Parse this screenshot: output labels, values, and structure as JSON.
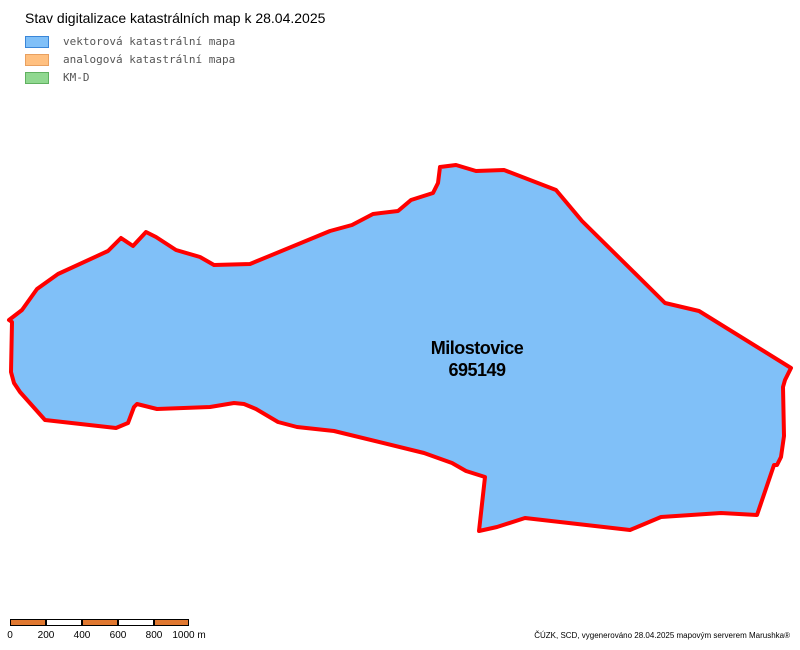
{
  "title": "Stav digitalizace katastrálních map k 28.04.2025",
  "legend": {
    "items": [
      {
        "label": "vektorová katastrální mapa",
        "fill": "#80c0f8",
        "stroke": "#3a86d8"
      },
      {
        "label": "analogová katastrální mapa",
        "fill": "#ffc080",
        "stroke": "#e8a060"
      },
      {
        "label": "KM-D",
        "fill": "#90d890",
        "stroke": "#60b060"
      }
    ]
  },
  "parcel": {
    "name": "Milostovice",
    "code": "695149",
    "fill": "#80c0f8",
    "stroke": "#ff0000"
  },
  "scalebar": {
    "labels": [
      "0",
      "200",
      "400",
      "600",
      "800",
      "1000 m"
    ],
    "colors": [
      "#e07830",
      "#ffffff",
      "#e07830",
      "#ffffff",
      "#e07830"
    ]
  },
  "attribution": "ČÚZK, SCD, vygenerováno 28.04.2025 mapovým serverem Marushka®"
}
